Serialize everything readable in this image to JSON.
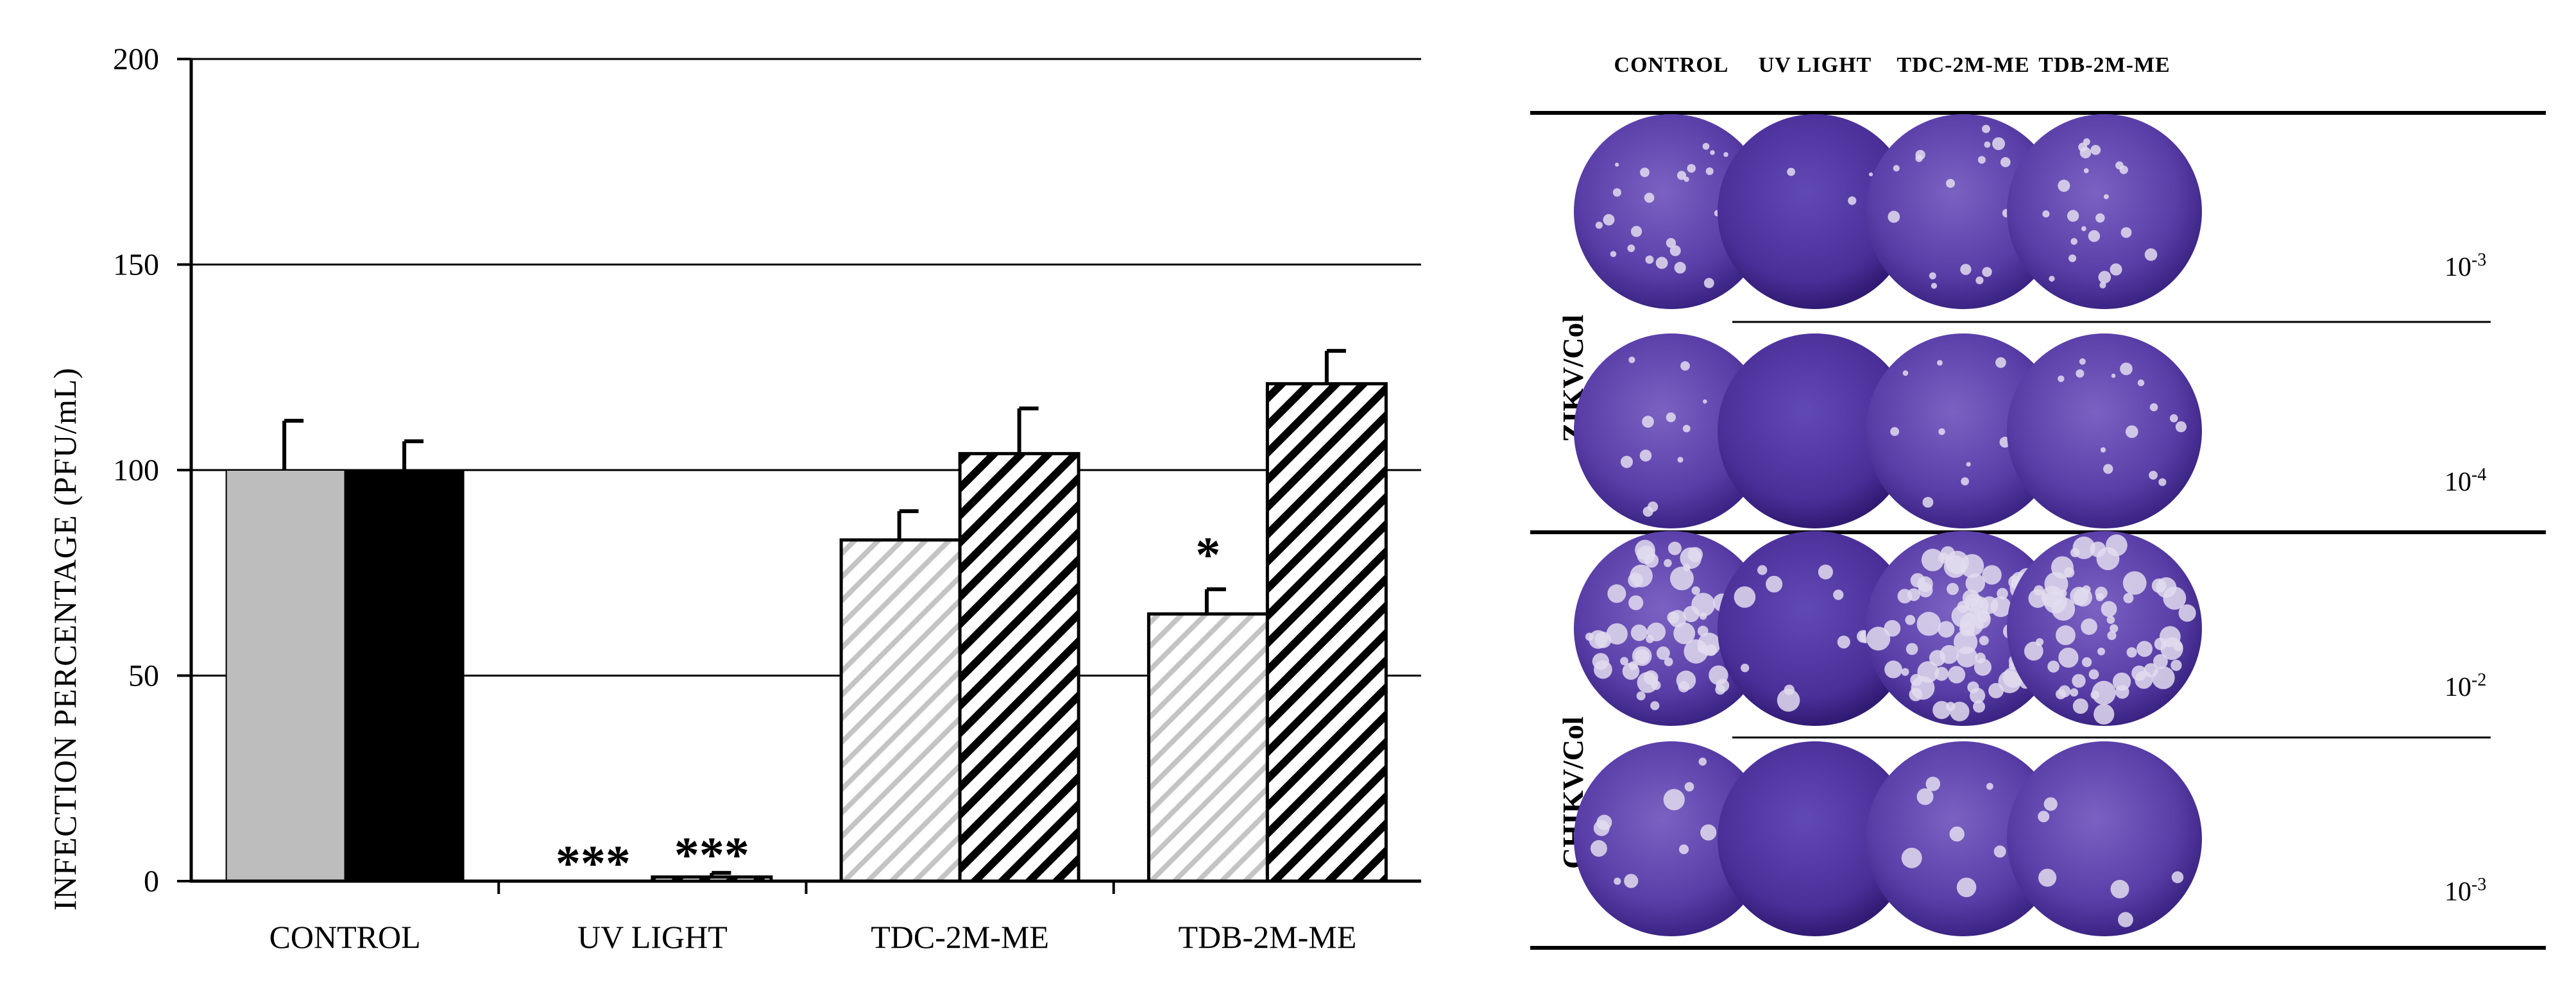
{
  "chart_data": {
    "type": "bar",
    "ylabel": "INFECTION PERCENTAGE (PFU/mL)",
    "xlabel": "",
    "ylim": [
      0,
      200
    ],
    "yticks": [
      0,
      50,
      100,
      150,
      200
    ],
    "grid": true,
    "categories": [
      "CONTROL",
      "UV LIGHT",
      "TDC-2M-ME",
      "TDB-2M-ME"
    ],
    "series": [
      {
        "name": "ZIKV/Col",
        "values": [
          100,
          0,
          83,
          65
        ],
        "errors": [
          12,
          0,
          7,
          6
        ],
        "fill": "#bdbdbd",
        "pattern": "hatch-light"
      },
      {
        "name": "CHIKV/Col",
        "values": [
          100,
          1,
          104,
          121
        ],
        "errors": [
          7,
          1,
          11,
          8
        ],
        "fill": "#000000",
        "pattern": "hatch-dark"
      }
    ],
    "annotations": [
      {
        "category": 1,
        "series": 0,
        "text": "***"
      },
      {
        "category": 1,
        "series": 1,
        "text": "***"
      },
      {
        "category": 3,
        "series": 0,
        "text": "*"
      }
    ]
  },
  "plaque_panel": {
    "columns": [
      "CONTROL",
      "UV LIGHT",
      "TDC-2M-ME",
      "TDB-2M-ME"
    ],
    "groups": [
      {
        "label": "ZIKV/Col",
        "rows": [
          {
            "dilution_base": "10",
            "dilution_exp": "-3"
          },
          {
            "dilution_base": "10",
            "dilution_exp": "-4"
          }
        ]
      },
      {
        "label": "CHIKV/Col",
        "rows": [
          {
            "dilution_base": "10",
            "dilution_exp": "-2"
          },
          {
            "dilution_base": "10",
            "dilution_exp": "-3"
          }
        ]
      }
    ]
  },
  "colors": {
    "well_stain": "#5a3ea8",
    "well_stain_dark": "#3b2484",
    "plaque": "#e2dcef"
  }
}
